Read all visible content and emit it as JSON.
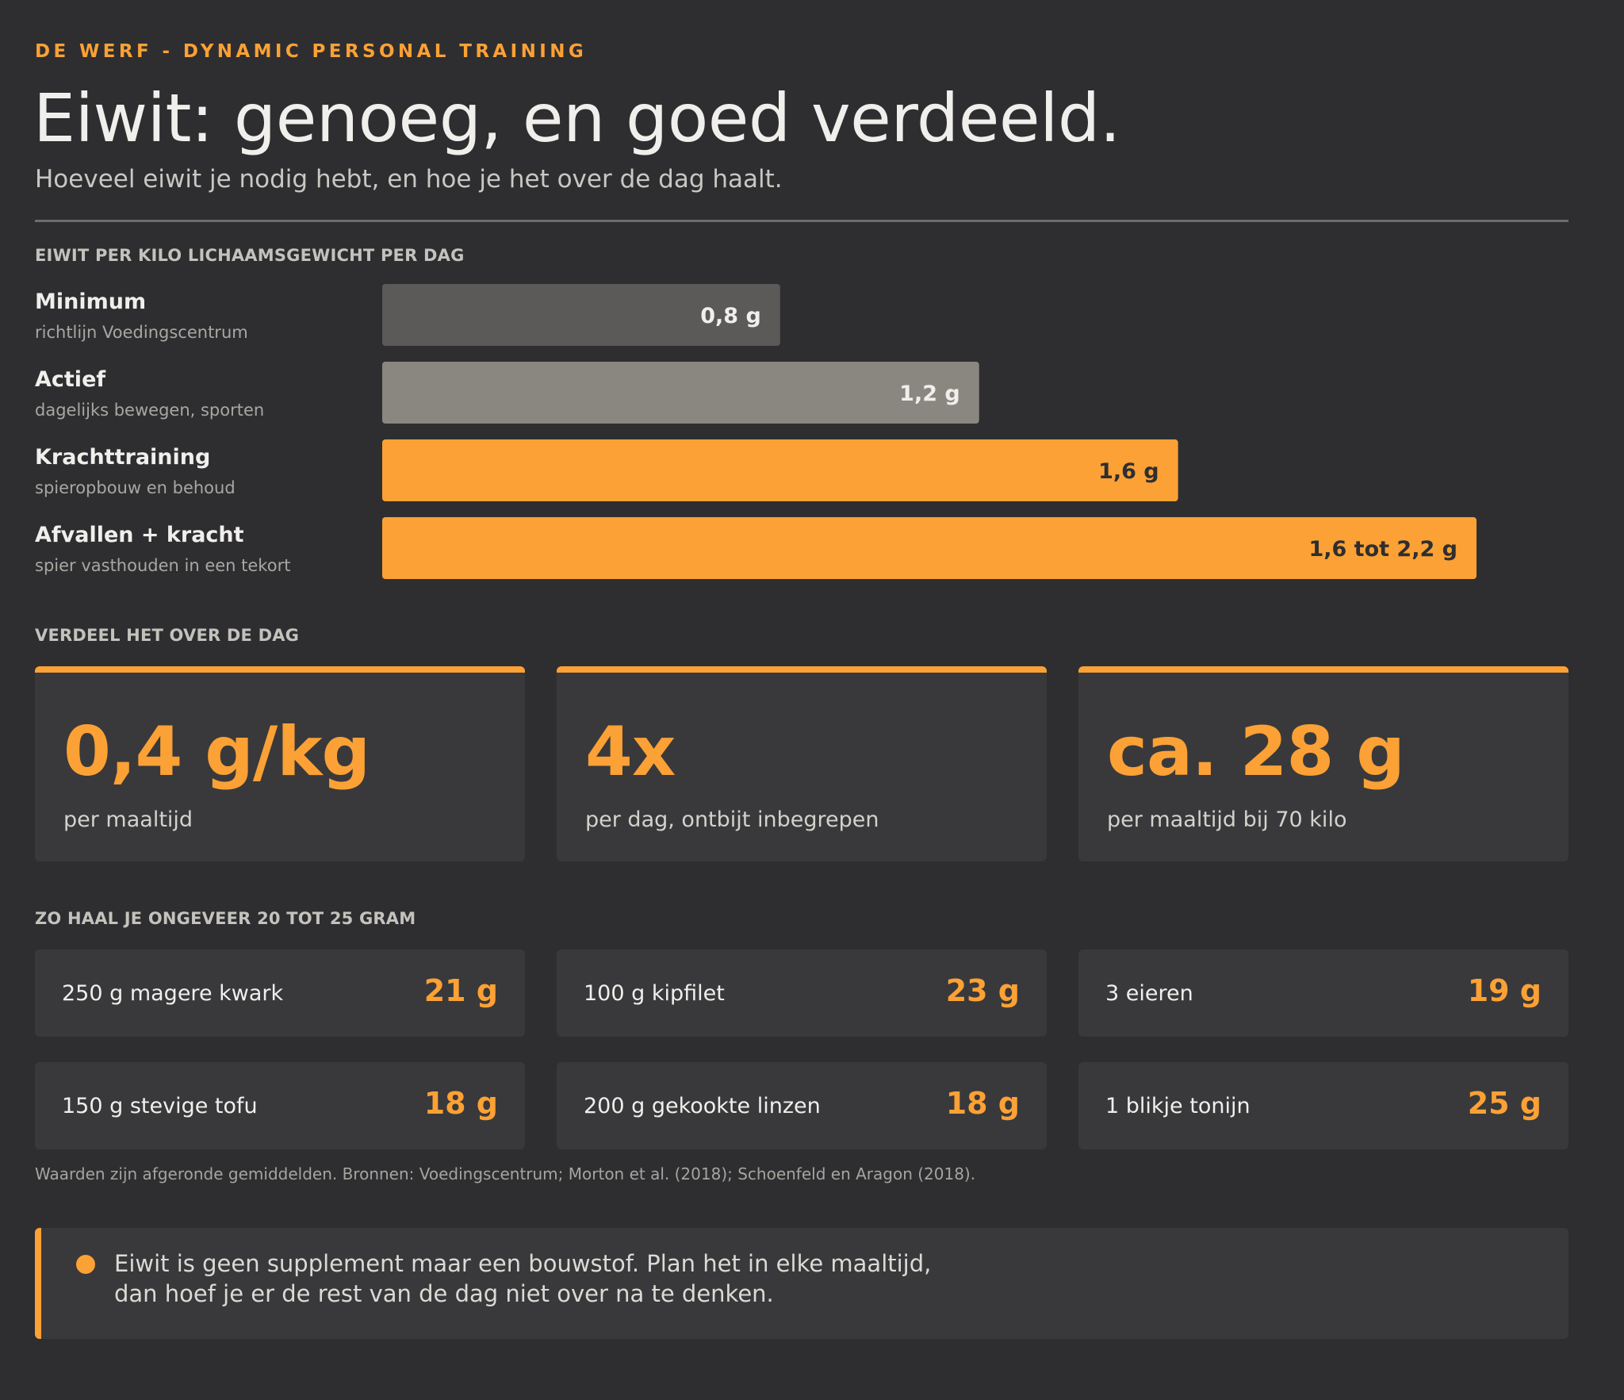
{
  "header": {
    "brand": "DE WERF - DYNAMIC PERSONAL TRAINING",
    "title": "Eiwit: genoeg, en goed verdeeld.",
    "subtitle": "Hoeveel eiwit je nodig hebt, en hoe je het over de dag haalt."
  },
  "sections": {
    "per_kilo": "EIWIT PER KILO LICHAAMSGEWICHT PER DAG",
    "verdeel": "VERDEEL HET OVER DE DAG",
    "zo_haal": "ZO HAAL JE ONGEVEER 20 TOT 25 GRAM"
  },
  "colors": {
    "accent": "#fba135",
    "background": "#2e2e30",
    "card": "#39393b",
    "bar_minimum": "#5b5a59",
    "bar_actief": "#8a8780"
  },
  "chart_data": {
    "type": "bar",
    "orientation": "horizontal",
    "title": "EIWIT PER KILO LICHAAMSGEWICHT PER DAG",
    "unit": "g",
    "xlim": [
      0,
      2.3
    ],
    "grid": false,
    "categories": [
      "Minimum",
      "Actief",
      "Krachttraining",
      "Afvallen + kracht"
    ],
    "descriptions": [
      "richtlijn Voedingscentrum",
      "dagelijks bewegen, sporten",
      "spieropbouw en behoud",
      "spier vasthouden in een tekort"
    ],
    "values": [
      0.8,
      1.2,
      1.6,
      2.2
    ],
    "value_labels": [
      "0,8 g",
      "1,2 g",
      "1,6 g",
      "1,6 tot 2,2 g"
    ],
    "colors": [
      "#5b5a59",
      "#8a8780",
      "#fba135",
      "#fba135"
    ],
    "label_colors": [
      "#f0efec",
      "#f0efec",
      "#2e2e30",
      "#2e2e30"
    ]
  },
  "stats": [
    {
      "value": "0,4 g/kg",
      "label": "per maaltijd"
    },
    {
      "value": "4x",
      "label": "per dag, ontbijt inbegrepen"
    },
    {
      "value": "ca. 28 g",
      "label": "per maaltijd bij 70 kilo"
    }
  ],
  "foods": [
    {
      "name": "250 g magere kwark",
      "grams": "21 g"
    },
    {
      "name": "100 g kipfilet",
      "grams": "23 g"
    },
    {
      "name": "3 eieren",
      "grams": "19 g"
    },
    {
      "name": "150 g stevige tofu",
      "grams": "18 g"
    },
    {
      "name": "200 g gekookte linzen",
      "grams": "18 g"
    },
    {
      "name": "1 blikje tonijn",
      "grams": "25 g"
    }
  ],
  "footnote": "Waarden zijn afgeronde gemiddelden. Bronnen: Voedingscentrum; Morton et al. (2018); Schoenfeld en Aragon (2018).",
  "callout": {
    "line1": "Eiwit is geen supplement maar een bouwstof. Plan het in elke maaltijd,",
    "line2": "dan hoef je er de rest van de dag niet over na te denken."
  }
}
